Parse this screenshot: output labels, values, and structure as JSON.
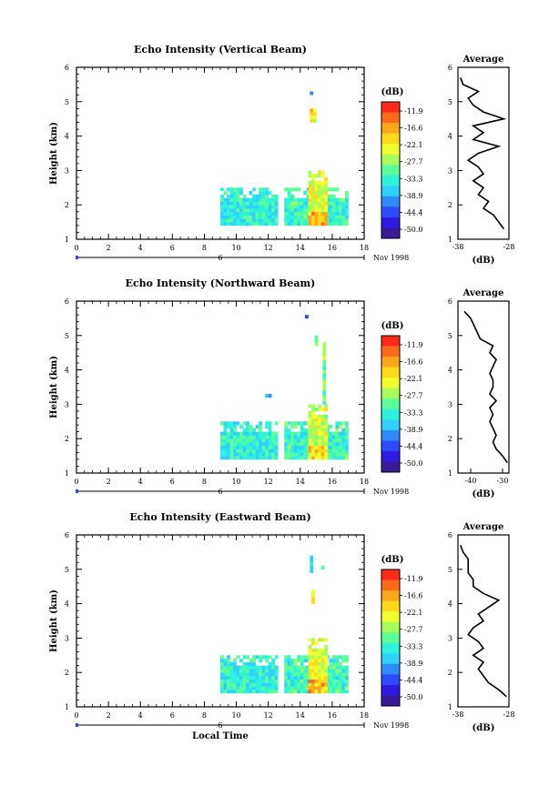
{
  "chart_data": [
    {
      "type": "heatmap",
      "title": "Echo Intensity (Vertical Beam)",
      "ylabel": "Height (km)",
      "xlabel": "",
      "x_ticks": [
        "0",
        "2",
        "4",
        "6",
        "8",
        "10",
        "12",
        "14",
        "16",
        "18"
      ],
      "y_ticks": [
        "1",
        "2",
        "3",
        "4",
        "5",
        "6"
      ],
      "xlim": [
        0,
        18
      ],
      "ylim": [
        1,
        6
      ],
      "date_marker": "6",
      "date_label": "Nov 1998",
      "colorbar": {
        "unit": "(dB)",
        "labels": [
          "-11.9",
          "-16.6",
          "-22.1",
          "-27.7",
          "-33.3",
          "-38.9",
          "-44.4",
          "-50.0"
        ]
      },
      "echo_regions": [
        {
          "t": [
            9.0,
            12.5
          ],
          "h": [
            1.4,
            2.5
          ],
          "level": -34
        },
        {
          "t": [
            13.0,
            16.9
          ],
          "h": [
            1.4,
            2.5
          ],
          "level": -33
        },
        {
          "t": [
            14.5,
            15.6
          ],
          "h": [
            1.4,
            3.0
          ],
          "level": -25
        },
        {
          "t": [
            14.6,
            14.9
          ],
          "h": [
            4.4,
            4.8
          ],
          "level": -28
        },
        {
          "t": [
            14.6,
            14.8
          ],
          "h": [
            5.2,
            5.3
          ],
          "level": -36
        }
      ],
      "average": {
        "title": "Average",
        "xlabel": "(dB)",
        "x_ticks": [
          "-38",
          "-28"
        ],
        "xlim": [
          -38,
          -28
        ],
        "y_ticks": [
          "1",
          "2",
          "3",
          "4",
          "5",
          "6"
        ],
        "ylim": [
          1,
          6
        ],
        "profile": [
          {
            "h": 1.3,
            "v": -29
          },
          {
            "h": 1.5,
            "v": -30
          },
          {
            "h": 1.7,
            "v": -31
          },
          {
            "h": 1.9,
            "v": -33
          },
          {
            "h": 2.1,
            "v": -32
          },
          {
            "h": 2.3,
            "v": -34
          },
          {
            "h": 2.5,
            "v": -33
          },
          {
            "h": 2.7,
            "v": -35
          },
          {
            "h": 2.9,
            "v": -33
          },
          {
            "h": 3.1,
            "v": -34
          },
          {
            "h": 3.3,
            "v": -36
          },
          {
            "h": 3.5,
            "v": -34
          },
          {
            "h": 3.7,
            "v": -30
          },
          {
            "h": 3.9,
            "v": -35
          },
          {
            "h": 4.1,
            "v": -33
          },
          {
            "h": 4.3,
            "v": -35
          },
          {
            "h": 4.5,
            "v": -29
          },
          {
            "h": 4.7,
            "v": -33
          },
          {
            "h": 4.9,
            "v": -35
          },
          {
            "h": 5.1,
            "v": -36
          },
          {
            "h": 5.3,
            "v": -34
          },
          {
            "h": 5.5,
            "v": -37
          },
          {
            "h": 5.7,
            "v": -37.5
          }
        ]
      }
    },
    {
      "type": "heatmap",
      "title": "Echo Intensity (Northward Beam)",
      "ylabel": "Height (km)",
      "xlabel": "",
      "x_ticks": [
        "0",
        "2",
        "4",
        "6",
        "8",
        "10",
        "12",
        "14",
        "16",
        "18"
      ],
      "y_ticks": [
        "1",
        "2",
        "3",
        "4",
        "5",
        "6"
      ],
      "xlim": [
        0,
        18
      ],
      "ylim": [
        1,
        6
      ],
      "date_marker": "6",
      "date_label": "Nov 1998",
      "colorbar": {
        "unit": "(dB)",
        "labels": [
          "-11.9",
          "-16.6",
          "-22.1",
          "-27.7",
          "-33.3",
          "-38.9",
          "-44.4",
          "-50.0"
        ]
      },
      "echo_regions": [
        {
          "t": [
            9.0,
            12.5
          ],
          "h": [
            1.4,
            2.5
          ],
          "level": -34
        },
        {
          "t": [
            13.0,
            16.9
          ],
          "h": [
            1.4,
            2.5
          ],
          "level": -33
        },
        {
          "t": [
            14.5,
            15.6
          ],
          "h": [
            1.4,
            3.0
          ],
          "level": -26
        },
        {
          "t": [
            11.8,
            12.2
          ],
          "h": [
            3.2,
            3.3
          ],
          "level": -38
        },
        {
          "t": [
            15.4,
            15.6
          ],
          "h": [
            3.0,
            4.8
          ],
          "level": -30
        },
        {
          "t": [
            14.9,
            15.1
          ],
          "h": [
            4.7,
            5.0
          ],
          "level": -30
        },
        {
          "t": [
            14.3,
            14.5
          ],
          "h": [
            5.5,
            5.6
          ],
          "level": -40
        }
      ],
      "average": {
        "title": "Average",
        "xlabel": "(dB)",
        "x_ticks": [
          "-40",
          "-30"
        ],
        "xlim": [
          -44,
          -28
        ],
        "y_ticks": [
          "1",
          "2",
          "3",
          "4",
          "5",
          "6"
        ],
        "ylim": [
          1,
          6
        ],
        "profile": [
          {
            "h": 1.3,
            "v": -28.5
          },
          {
            "h": 1.5,
            "v": -30
          },
          {
            "h": 1.7,
            "v": -32
          },
          {
            "h": 1.9,
            "v": -33
          },
          {
            "h": 2.1,
            "v": -32
          },
          {
            "h": 2.3,
            "v": -33
          },
          {
            "h": 2.5,
            "v": -34
          },
          {
            "h": 2.7,
            "v": -33
          },
          {
            "h": 2.9,
            "v": -34
          },
          {
            "h": 3.1,
            "v": -32
          },
          {
            "h": 3.3,
            "v": -34
          },
          {
            "h": 3.5,
            "v": -33
          },
          {
            "h": 3.7,
            "v": -33
          },
          {
            "h": 3.9,
            "v": -34
          },
          {
            "h": 4.1,
            "v": -33
          },
          {
            "h": 4.3,
            "v": -32
          },
          {
            "h": 4.5,
            "v": -34
          },
          {
            "h": 4.7,
            "v": -33
          },
          {
            "h": 4.9,
            "v": -37
          },
          {
            "h": 5.1,
            "v": -38
          },
          {
            "h": 5.3,
            "v": -39
          },
          {
            "h": 5.5,
            "v": -40
          },
          {
            "h": 5.7,
            "v": -42
          }
        ]
      }
    },
    {
      "type": "heatmap",
      "title": "Echo Intensity (Eastward Beam)",
      "ylabel": "Height (km)",
      "xlabel": "Local Time",
      "x_ticks": [
        "0",
        "2",
        "4",
        "6",
        "8",
        "10",
        "12",
        "14",
        "16",
        "18"
      ],
      "y_ticks": [
        "1",
        "2",
        "3",
        "4",
        "5",
        "6"
      ],
      "xlim": [
        0,
        18
      ],
      "ylim": [
        1,
        6
      ],
      "date_marker": "6",
      "date_label": "Nov 1998",
      "colorbar": {
        "unit": "(dB)",
        "labels": [
          "-11.9",
          "-16.6",
          "-22.1",
          "-27.7",
          "-33.3",
          "-38.9",
          "-44.4",
          "-50.0"
        ]
      },
      "echo_regions": [
        {
          "t": [
            9.0,
            12.5
          ],
          "h": [
            1.4,
            2.5
          ],
          "level": -34
        },
        {
          "t": [
            13.0,
            16.9
          ],
          "h": [
            1.4,
            2.5
          ],
          "level": -33
        },
        {
          "t": [
            14.5,
            15.6
          ],
          "h": [
            1.4,
            3.0
          ],
          "level": -25
        },
        {
          "t": [
            14.7,
            14.9
          ],
          "h": [
            4.0,
            4.4
          ],
          "level": -29
        },
        {
          "t": [
            14.6,
            14.8
          ],
          "h": [
            4.9,
            5.4
          ],
          "level": -36
        },
        {
          "t": [
            15.3,
            15.5
          ],
          "h": [
            5.0,
            5.1
          ],
          "level": -30
        }
      ],
      "average": {
        "title": "Average",
        "xlabel": "(dB)",
        "x_ticks": [
          "-38",
          "-28"
        ],
        "xlim": [
          -38,
          -28
        ],
        "y_ticks": [
          "1",
          "2",
          "3",
          "4",
          "5",
          "6"
        ],
        "ylim": [
          1,
          6
        ],
        "profile": [
          {
            "h": 1.3,
            "v": -28.5
          },
          {
            "h": 1.5,
            "v": -30
          },
          {
            "h": 1.7,
            "v": -32
          },
          {
            "h": 1.9,
            "v": -33
          },
          {
            "h": 2.1,
            "v": -34
          },
          {
            "h": 2.3,
            "v": -33
          },
          {
            "h": 2.5,
            "v": -35
          },
          {
            "h": 2.7,
            "v": -33
          },
          {
            "h": 2.9,
            "v": -34
          },
          {
            "h": 3.1,
            "v": -36
          },
          {
            "h": 3.3,
            "v": -35
          },
          {
            "h": 3.5,
            "v": -33
          },
          {
            "h": 3.7,
            "v": -34
          },
          {
            "h": 3.9,
            "v": -32
          },
          {
            "h": 4.1,
            "v": -30
          },
          {
            "h": 4.3,
            "v": -33
          },
          {
            "h": 4.5,
            "v": -35
          },
          {
            "h": 4.7,
            "v": -35
          },
          {
            "h": 4.9,
            "v": -36
          },
          {
            "h": 5.1,
            "v": -36
          },
          {
            "h": 5.3,
            "v": -36
          },
          {
            "h": 5.5,
            "v": -37
          },
          {
            "h": 5.7,
            "v": -37.5
          }
        ]
      }
    }
  ],
  "colors": {
    "scale": [
      "#ff2a1a",
      "#ff6a1a",
      "#ffa61a",
      "#ffd91a",
      "#f2ff2e",
      "#a8ff5a",
      "#5cff98",
      "#2ef2d9",
      "#2ed1ff",
      "#2e8cff",
      "#2e4cff",
      "#2e1ae0",
      "#3b1a99"
    ]
  }
}
